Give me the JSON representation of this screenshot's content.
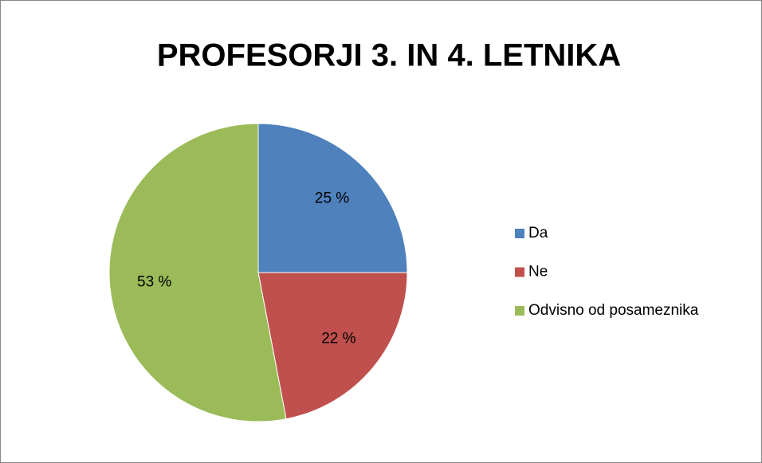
{
  "chart_data": {
    "type": "pie",
    "title": "PROFESORJI 3. IN 4. LETNIKA",
    "categories": [
      "Da",
      "Ne",
      "Odvisno od posameznika"
    ],
    "values": [
      25,
      22,
      53
    ],
    "value_labels": [
      "25 %",
      "22 %",
      "53 %"
    ],
    "colors": [
      "#4f81bd",
      "#c0504d",
      "#9bbb59"
    ],
    "legend": "right"
  }
}
